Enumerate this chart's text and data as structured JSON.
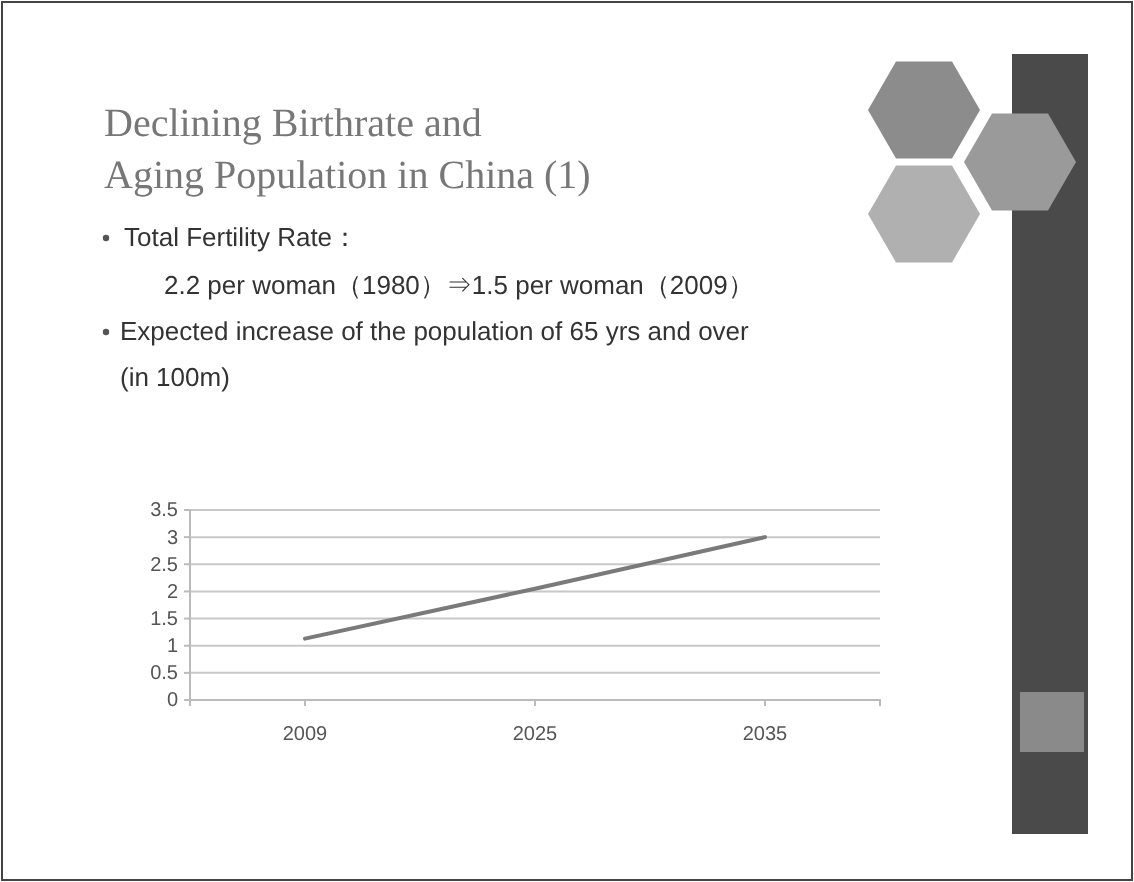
{
  "chart_data": {
    "type": "line",
    "title": "Declining Birthrate and\nAging Population in China (1)",
    "annotations": [
      "Total Fertility Rate：",
      "2.2 per woman（1980）⇒1.5 per woman（2009）",
      "Expected increase of the population of 65 yrs and over"
    ],
    "ylabel": "(in 100m)",
    "categories": [
      "2009",
      "2025",
      "2035"
    ],
    "series": [
      {
        "color": "#7a7a7a",
        "values": [
          1.13,
          2.05,
          3.0
        ]
      }
    ],
    "ylim": [
      0,
      3.5
    ],
    "yticks": [
      0,
      0.5,
      1,
      1.5,
      2,
      2.5,
      3,
      3.5
    ],
    "grid": "y",
    "marker": "none",
    "line_style": "solid"
  }
}
